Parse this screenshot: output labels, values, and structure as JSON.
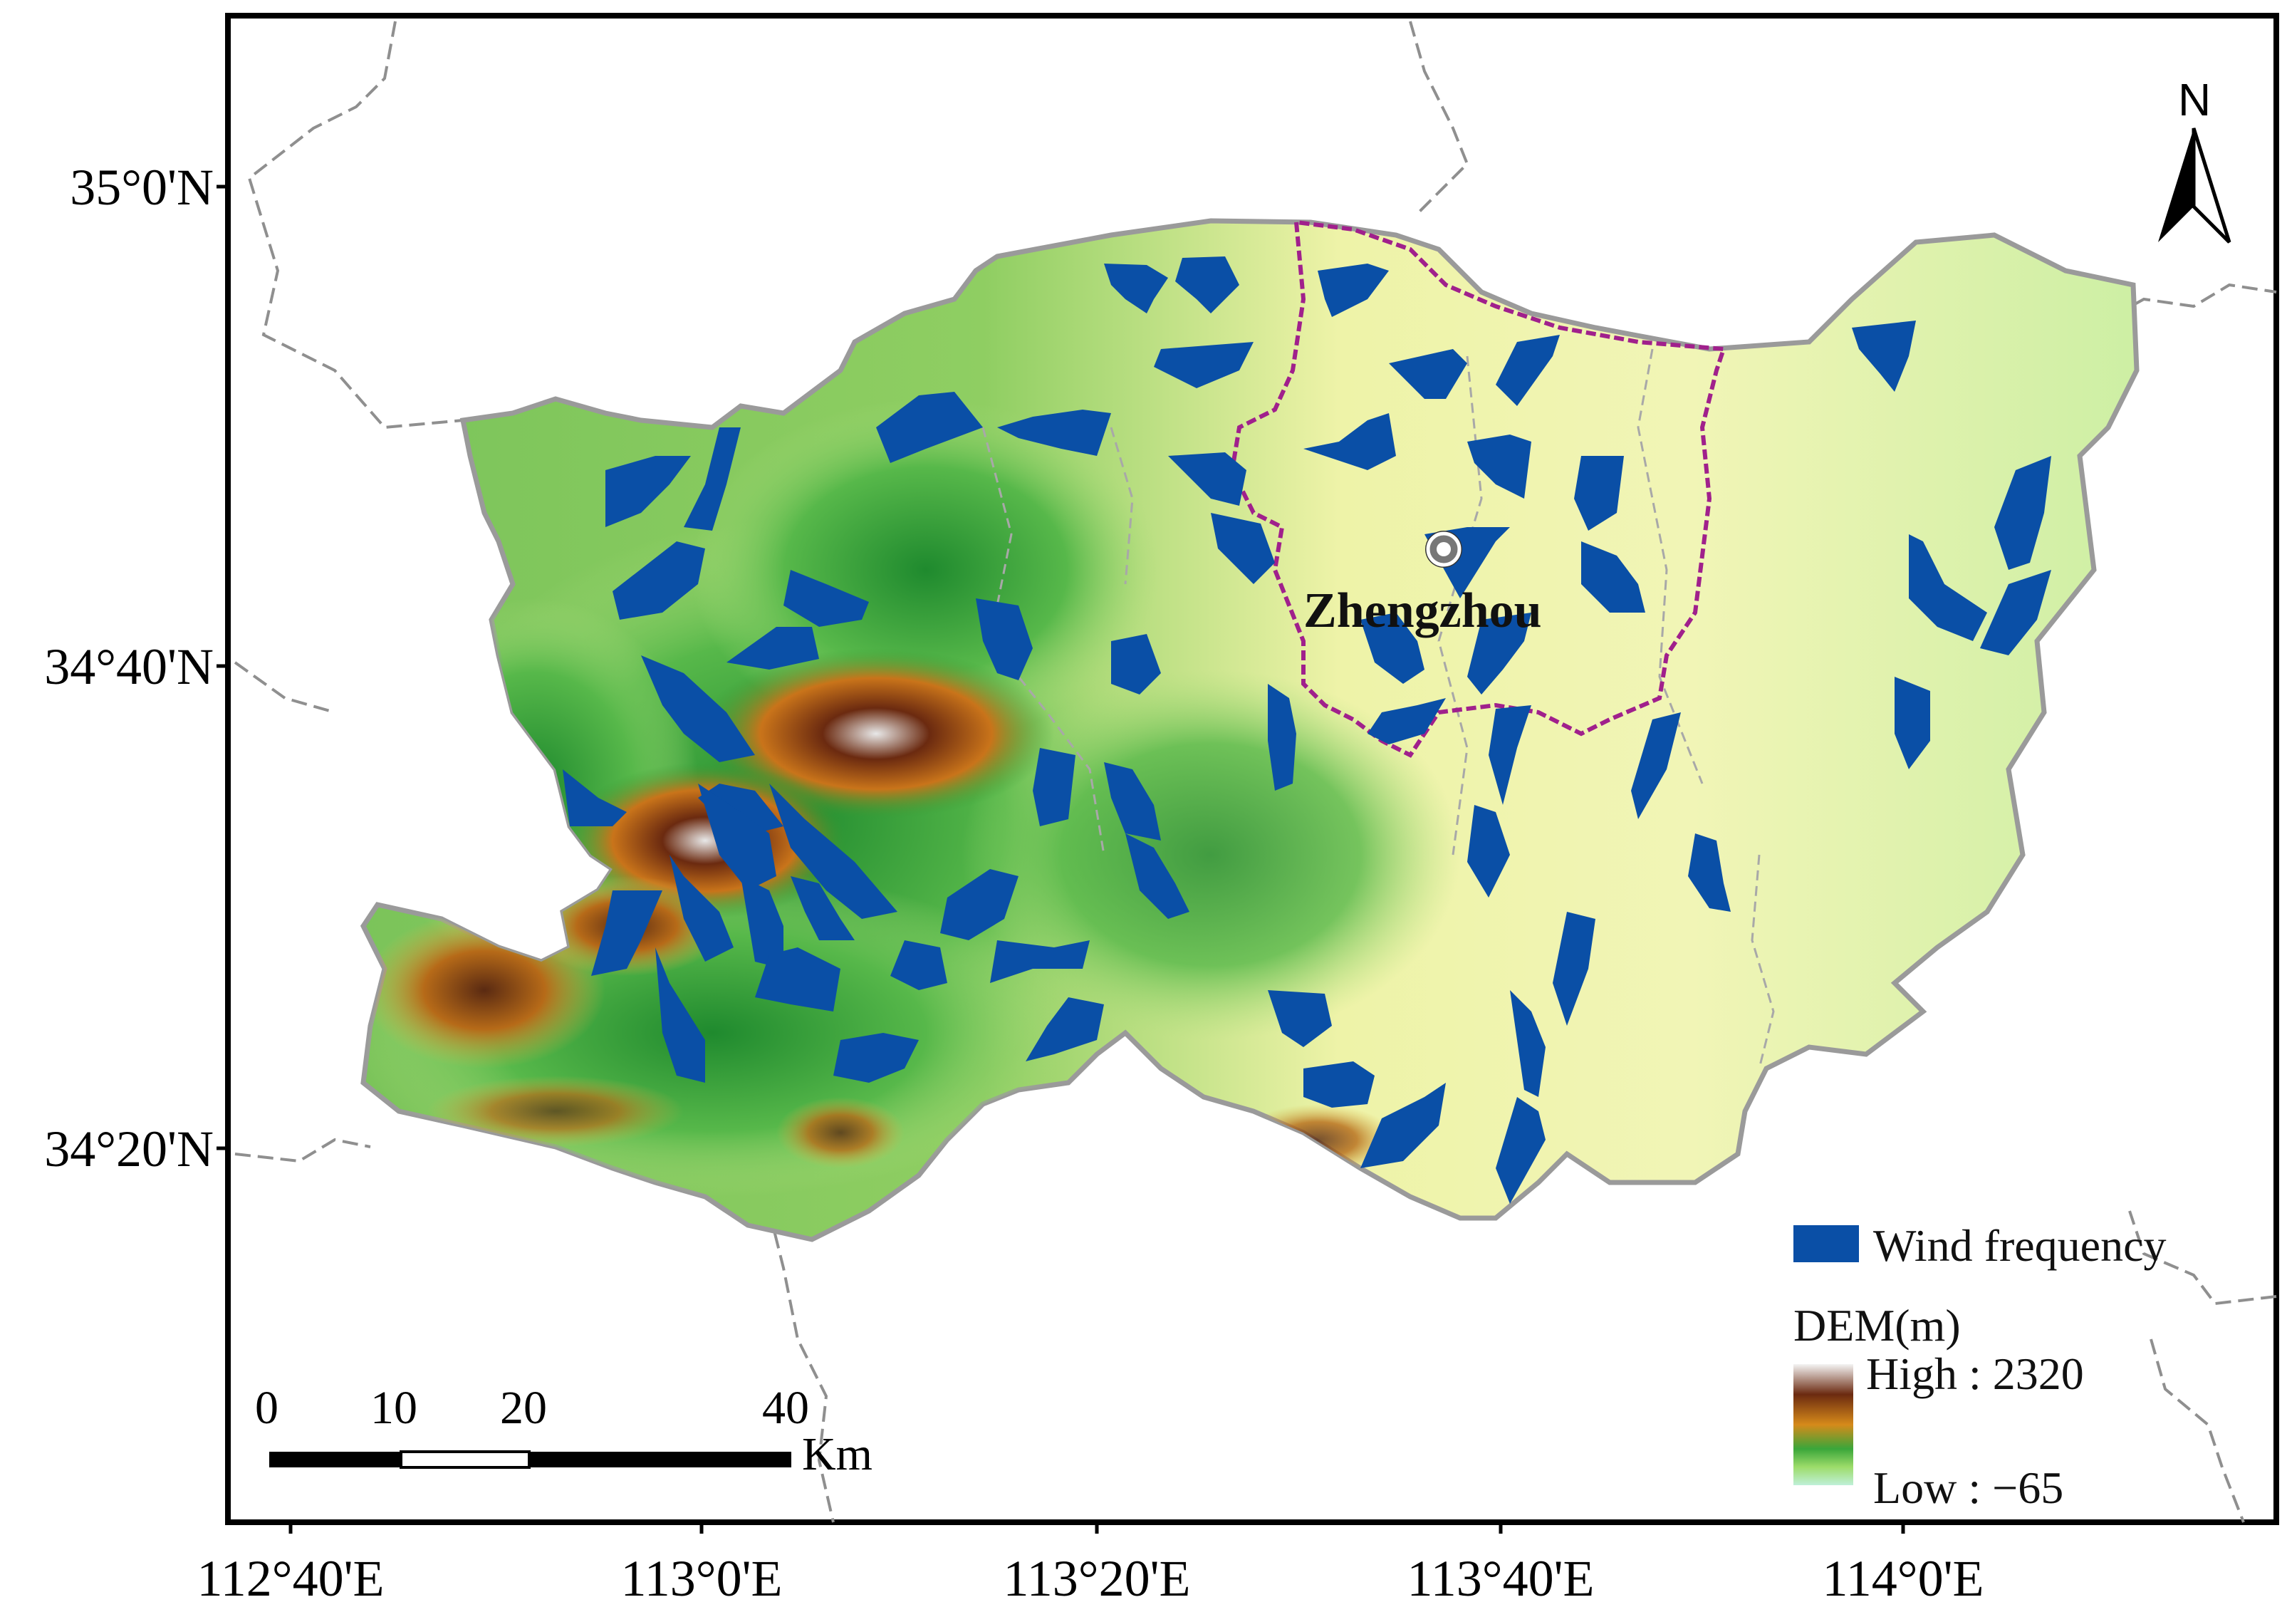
{
  "map": {
    "city_label": "Zhengzhou",
    "north_label": "N",
    "lat_labels": [
      "35°0'N",
      "34°40'N",
      "34°20'N"
    ],
    "lon_labels": [
      "112°40'E",
      "113°0'E",
      "113°20'E",
      "113°40'E",
      "114°0'E"
    ],
    "scale_bar": {
      "ticks": [
        "0",
        "10",
        "20",
        "40"
      ],
      "unit": "Km"
    },
    "legend": {
      "wind_label": "Wind frequency",
      "dem_title": "DEM(m)",
      "dem_high": "High : 2320",
      "dem_low": "Low : −65"
    },
    "colors": {
      "wind": "#0a4fa6",
      "district_boundary": "#a0208c",
      "county_boundary": "#9a9a9a",
      "dem_high": "#f2f2f2",
      "dem_mid_high": "#6b2a10",
      "dem_mid": "#d68a1a",
      "dem_mid_low": "#3aa63a",
      "dem_low": "#c6efa6",
      "dem_lowest": "#f3f7c0"
    }
  }
}
